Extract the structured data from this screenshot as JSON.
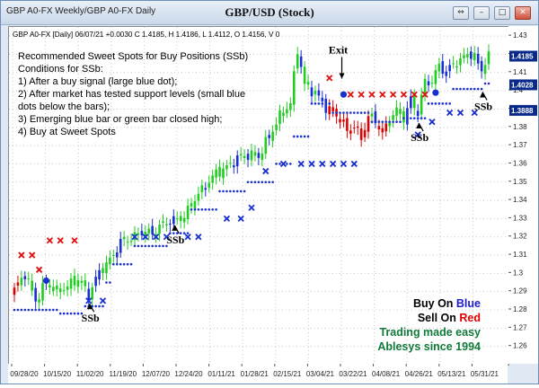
{
  "window": {
    "tabs_label": "GBP A0-FX Weekly/GBP A0-FX Daily",
    "title": "GBP/USD (Stock)",
    "buttons": [
      "⇔",
      "–",
      "□",
      "✕"
    ]
  },
  "chart_data": {
    "type": "candlestick",
    "info_line": "GBP A0-FX [Daily] 06/07/21 +0.0030 C 1.4185, H 1.4186, L 1.4112, O 1.4156, V 0",
    "ylim": [
      1.25,
      1.435
    ],
    "y_ticks": [
      1.26,
      1.27,
      1.28,
      1.29,
      1.3,
      1.31,
      1.32,
      1.33,
      1.34,
      1.35,
      1.36,
      1.37,
      1.38,
      1.39,
      1.4,
      1.41,
      1.42,
      1.43
    ],
    "y_tick_labels": [
      "1.26",
      "1.27",
      "1.28",
      "1.29",
      "1.3",
      "1.31",
      "1.32",
      "1.33",
      "1.34",
      "1.35",
      "1.36",
      "1.37",
      "1.38",
      "1.39",
      "1.4",
      "1.41",
      "1.42",
      "1.43"
    ],
    "x_tick_labels": [
      "09/28/20",
      "10/15/20",
      "11/02/20",
      "11/19/20",
      "12/07/20",
      "12/24/20",
      "01/11/21",
      "01/28/21",
      "02/15/21",
      "03/04/21",
      "03/22/21",
      "04/08/21",
      "04/26/21",
      "05/13/21",
      "05/31/21"
    ],
    "price_labels": [
      {
        "text": "1.4185",
        "value": 1.4185,
        "bg": "#0a2a8a"
      },
      {
        "text": "1.4028",
        "value": 1.4028,
        "bg": "#0a2a8a"
      },
      {
        "text": "1.3888",
        "value": 1.3888,
        "bg": "#0a2a8a"
      }
    ],
    "notes": {
      "heading": "Recommended Sweet Spots for Buy Positions (SSb)",
      "lines": [
        "Conditions for SSb:",
        "1) After a buy signal (large blue dot);",
        "2) After market has tested support levels (small blue",
        "    dots below the bars);",
        "3) Emerging blue bar or green bar closed high;",
        "4) Buy at Sweet Spots"
      ]
    },
    "annotations": [
      {
        "text": "Exit",
        "i": 92,
        "value": 1.4205
      },
      {
        "text": "SSb",
        "i": 22,
        "value": 1.2735
      },
      {
        "text": "SSb",
        "i": 46,
        "value": 1.3165
      },
      {
        "text": "SSb",
        "i": 115,
        "value": 1.3725
      },
      {
        "text": "SSb",
        "i": 133,
        "value": 1.3895
      }
    ],
    "legend": [
      {
        "parts": [
          {
            "text": "Buy On ",
            "color": "#000000"
          },
          {
            "text": "Blue",
            "color": "#1a1ad0"
          }
        ]
      },
      {
        "parts": [
          {
            "text": "Sell On ",
            "color": "#000000"
          },
          {
            "text": "Red",
            "color": "#e00000"
          }
        ]
      },
      {
        "parts": [
          {
            "text": "Trading made easy",
            "color": "#0f7a3a"
          }
        ]
      },
      {
        "parts": [
          {
            "text": "Ablesys since 1994",
            "color": "#0f7a3a"
          }
        ]
      }
    ],
    "colors": {
      "up": "#22cc22",
      "down": "#e00000",
      "buy": "#1a2fd0",
      "sell": "#e01010"
    },
    "keypoints_close": [
      [
        0,
        1.291
      ],
      [
        3,
        1.3
      ],
      [
        6,
        1.285
      ],
      [
        9,
        1.295
      ],
      [
        12,
        1.29
      ],
      [
        15,
        1.293
      ],
      [
        18,
        1.297
      ],
      [
        21,
        1.288
      ],
      [
        24,
        1.301
      ],
      [
        27,
        1.307
      ],
      [
        30,
        1.317
      ],
      [
        33,
        1.319
      ],
      [
        36,
        1.323
      ],
      [
        39,
        1.322
      ],
      [
        42,
        1.327
      ],
      [
        45,
        1.329
      ],
      [
        48,
        1.331
      ],
      [
        51,
        1.341
      ],
      [
        54,
        1.348
      ],
      [
        57,
        1.355
      ],
      [
        60,
        1.358
      ],
      [
        63,
        1.363
      ],
      [
        66,
        1.365
      ],
      [
        69,
        1.364
      ],
      [
        72,
        1.375
      ],
      [
        75,
        1.386
      ],
      [
        78,
        1.393
      ],
      [
        80,
        1.423
      ],
      [
        82,
        1.403
      ],
      [
        85,
        1.399
      ],
      [
        88,
        1.391
      ],
      [
        92,
        1.385
      ],
      [
        94,
        1.378
      ],
      [
        96,
        1.381
      ],
      [
        98,
        1.374
      ],
      [
        100,
        1.386
      ],
      [
        102,
        1.384
      ],
      [
        104,
        1.376
      ],
      [
        106,
        1.385
      ],
      [
        108,
        1.389
      ],
      [
        110,
        1.385
      ],
      [
        112,
        1.395
      ],
      [
        114,
        1.388
      ],
      [
        116,
        1.405
      ],
      [
        118,
        1.405
      ],
      [
        120,
        1.414
      ],
      [
        122,
        1.41
      ],
      [
        124,
        1.415
      ],
      [
        126,
        1.416
      ],
      [
        128,
        1.421
      ],
      [
        130,
        1.418
      ],
      [
        132,
        1.412
      ],
      [
        134,
        1.4185
      ]
    ],
    "red_ranges": [
      [
        0,
        1
      ],
      [
        89,
        100
      ],
      [
        103,
        105
      ]
    ],
    "blue_ranges": [
      [
        23,
        24
      ],
      [
        29,
        30
      ],
      [
        44,
        45
      ],
      [
        62,
        63
      ],
      [
        86,
        88
      ],
      [
        111,
        112
      ],
      [
        121,
        123
      ],
      [
        131,
        132
      ]
    ],
    "support_steps": [
      [
        0,
        1.28
      ],
      [
        13,
        1.278
      ],
      [
        20,
        1.282
      ],
      [
        26,
        1.295
      ],
      [
        28,
        1.305
      ],
      [
        34,
        1.315
      ],
      [
        44,
        1.322
      ],
      [
        50,
        1.335
      ],
      [
        58,
        1.345
      ],
      [
        66,
        1.35
      ],
      [
        74,
        1.36
      ],
      [
        79,
        1.375
      ],
      [
        84,
        1.393
      ],
      [
        90,
        1.388
      ],
      [
        101,
        1.383
      ],
      [
        110,
        1.385
      ],
      [
        117,
        1.393
      ],
      [
        124,
        1.401
      ],
      [
        133,
        1.404
      ]
    ],
    "blue_x": [
      [
        21,
        1.285
      ],
      [
        25,
        1.285
      ],
      [
        34,
        1.32
      ],
      [
        37,
        1.32
      ],
      [
        40,
        1.32
      ],
      [
        43,
        1.32
      ],
      [
        49,
        1.32
      ],
      [
        52,
        1.32
      ],
      [
        60,
        1.33
      ],
      [
        64,
        1.33
      ],
      [
        67,
        1.336
      ],
      [
        71,
        1.356
      ],
      [
        76,
        1.36
      ],
      [
        81,
        1.36
      ],
      [
        84,
        1.36
      ],
      [
        87,
        1.36
      ],
      [
        90,
        1.36
      ],
      [
        93,
        1.36
      ],
      [
        96,
        1.36
      ],
      [
        114,
        1.376
      ],
      [
        118,
        1.383
      ],
      [
        123,
        1.388
      ],
      [
        126,
        1.388
      ],
      [
        130,
        1.388
      ]
    ],
    "red_x": [
      [
        2,
        1.31
      ],
      [
        5,
        1.31
      ],
      [
        7,
        1.302
      ],
      [
        10,
        1.318
      ],
      [
        13,
        1.318
      ],
      [
        17,
        1.318
      ],
      [
        89,
        1.407
      ],
      [
        95,
        1.398
      ],
      [
        98,
        1.398
      ],
      [
        101,
        1.398
      ],
      [
        104,
        1.398
      ],
      [
        107,
        1.398
      ],
      [
        110,
        1.398
      ],
      [
        113,
        1.398
      ],
      [
        116,
        1.398
      ]
    ],
    "large_blue_dots": [
      [
        9,
        1.296
      ],
      [
        93,
        1.398
      ],
      [
        119,
        1.399
      ]
    ]
  }
}
